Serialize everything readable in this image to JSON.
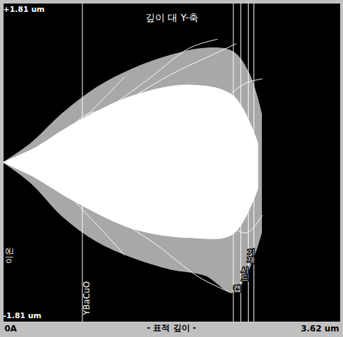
{
  "chart_data": {
    "type": "trajectory",
    "title": "깊이 대 Y-축",
    "x_label": "- 표적 깊이 -",
    "y_label": "이온",
    "xlim": [
      0,
      3.62
    ],
    "ylim": [
      -1.81,
      1.81
    ],
    "xticks": [
      {
        "value": 0,
        "label": "0A"
      },
      {
        "value": 3.62,
        "label": "3.62 um"
      }
    ],
    "yticks": [
      {
        "value": -1.81,
        "label": "-1.81 um"
      },
      {
        "value": 1.81,
        "label": "+1.81 um"
      }
    ],
    "color": "#ffffff",
    "boundaries": [
      0.85,
      2.47,
      2.55,
      2.63,
      2.69
    ],
    "layers": [
      "YBaCuO",
      "캡",
      "시드",
      "기재"
    ],
    "extent": {
      "x": [
        0,
        0.3,
        0.64,
        1.0,
        1.4,
        1.8,
        2.17,
        2.47,
        2.65,
        2.78
      ],
      "upper": [
        0,
        0.22,
        0.56,
        0.85,
        1.07,
        1.22,
        1.3,
        1.26,
        1.0,
        0.55
      ],
      "lower": [
        0,
        -0.24,
        -0.62,
        -0.9,
        -1.09,
        -1.22,
        -1.29,
        -1.48,
        -1.2,
        -0.8
      ]
    },
    "core": {
      "x": [
        0,
        0.3,
        0.79,
        1.4,
        2.01,
        2.47,
        2.74
      ],
      "upper": [
        0,
        0.14,
        0.46,
        0.76,
        0.88,
        0.76,
        0.22
      ],
      "lower": [
        0,
        -0.15,
        -0.46,
        -0.76,
        -0.86,
        -0.82,
        -0.3
      ]
    },
    "trajectories": [
      {
        "x": [
          0,
          0.2,
          0.7,
          1.1,
          1.3
        ],
        "y": [
          0,
          0.05,
          0.35,
          0.75,
          0.97
        ]
      },
      {
        "x": [
          0,
          0.5,
          1.0,
          1.3
        ],
        "y": [
          0,
          -0.2,
          -0.7,
          -1.05
        ]
      },
      {
        "x": [
          0,
          0.8,
          1.5,
          2.0,
          2.3
        ],
        "y": [
          0,
          0.4,
          0.9,
          1.3,
          1.4
        ]
      },
      {
        "x": [
          0,
          0.9,
          1.6,
          2.1,
          2.45
        ],
        "y": [
          0,
          -0.45,
          -0.9,
          -1.3,
          -1.48
        ]
      },
      {
        "x": [
          0,
          1.2,
          2.2,
          2.6,
          2.78
        ],
        "y": [
          0,
          0.3,
          0.6,
          0.9,
          0.95
        ]
      },
      {
        "x": [
          0,
          1.2,
          2.2,
          2.6,
          2.78
        ],
        "y": [
          0,
          -0.25,
          -0.5,
          -0.8,
          -0.6
        ]
      },
      {
        "x": [
          0,
          0.6,
          0.9,
          1.05
        ],
        "y": [
          0,
          0.3,
          0.55,
          0.58
        ]
      },
      {
        "x": [
          0,
          1.0,
          1.8,
          2.3,
          2.5
        ],
        "y": [
          0,
          0.5,
          1.0,
          1.25,
          1.35
        ]
      }
    ]
  }
}
